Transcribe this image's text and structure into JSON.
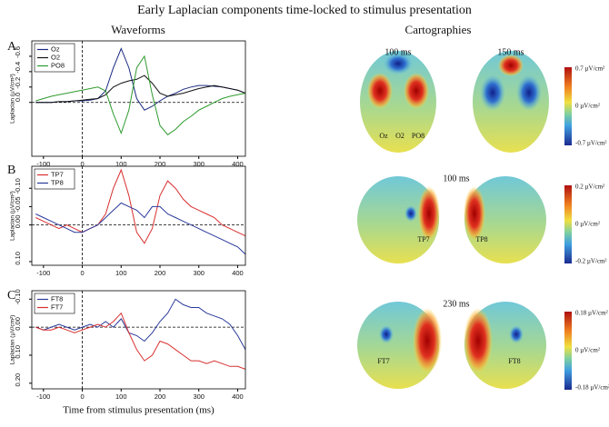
{
  "title": "Early Laplacian components time-locked to stimulus presentation",
  "chart_data": [
    {
      "type": "line",
      "title": "Waveforms",
      "panel": "A",
      "y_label": "Laplacian (µV/cm²)",
      "y_inverted": true,
      "legend": "upper left",
      "x": [
        -120,
        -100,
        -80,
        -60,
        -40,
        -20,
        0,
        20,
        40,
        60,
        80,
        100,
        120,
        140,
        160,
        180,
        200,
        220,
        240,
        260,
        280,
        300,
        320,
        340,
        360,
        380,
        400,
        420
      ],
      "xlim": [
        -130,
        420
      ],
      "xticks": [
        -100,
        0,
        100,
        200,
        300,
        400
      ],
      "ylim": [
        -0.8,
        0.7
      ],
      "yticks": [
        -0.6,
        -0.4,
        -0.2,
        {
          "value": 0,
          "label": "0.0"
        }
      ],
      "series": [
        {
          "name": "Oz",
          "color": "#1a2a80",
          "values": [
            0,
            0,
            0,
            -0.01,
            -0.01,
            -0.02,
            -0.02,
            -0.03,
            -0.05,
            -0.15,
            -0.45,
            -0.7,
            -0.45,
            -0.05,
            0.1,
            0.05,
            -0.02,
            -0.08,
            -0.12,
            -0.17,
            -0.2,
            -0.22,
            -0.22,
            -0.21,
            -0.2,
            -0.18,
            -0.16,
            -0.12
          ]
        },
        {
          "name": "O2",
          "color": "#111111",
          "values": [
            0,
            0,
            0,
            -0.01,
            -0.01,
            -0.02,
            -0.03,
            -0.04,
            -0.05,
            -0.1,
            -0.2,
            -0.25,
            -0.28,
            -0.3,
            -0.35,
            -0.25,
            -0.12,
            -0.08,
            -0.1,
            -0.12,
            -0.15,
            -0.18,
            -0.2,
            -0.22,
            -0.2,
            -0.18,
            -0.16,
            -0.12
          ]
        },
        {
          "name": "PO8",
          "color": "#2e9a2e",
          "values": [
            -0.02,
            -0.05,
            -0.08,
            -0.1,
            -0.12,
            -0.14,
            -0.16,
            -0.18,
            -0.2,
            -0.15,
            0.15,
            0.4,
            0.1,
            -0.45,
            -0.6,
            -0.1,
            0.3,
            0.42,
            0.35,
            0.25,
            0.18,
            0.1,
            0.05,
            0,
            -0.05,
            -0.08,
            -0.1,
            -0.12
          ]
        }
      ]
    },
    {
      "type": "line",
      "panel": "B",
      "y_label": "Laplacian (µV/cm²)",
      "y_inverted": true,
      "legend": "upper left",
      "x": [
        -120,
        -100,
        -80,
        -60,
        -40,
        -20,
        0,
        20,
        40,
        60,
        80,
        100,
        120,
        140,
        160,
        180,
        200,
        220,
        240,
        260,
        280,
        300,
        320,
        340,
        360,
        380,
        400,
        420
      ],
      "xlim": [
        -130,
        420
      ],
      "xticks": [
        -100,
        0,
        100,
        200,
        300,
        400
      ],
      "ylim": [
        -0.16,
        0.11
      ],
      "yticks": [
        {
          "value": -0.1,
          "label": "-0.10"
        },
        {
          "value": -0.05,
          "label": "-0.05"
        },
        {
          "value": 0,
          "label": "0.00"
        },
        {
          "value": 0.1,
          "label": "0.10"
        }
      ],
      "series": [
        {
          "name": "TP7",
          "color": "#d83030",
          "values": [
            -0.02,
            -0.01,
            0,
            0.01,
            0,
            0.01,
            0.02,
            0.01,
            0,
            -0.03,
            -0.1,
            -0.15,
            -0.08,
            0.02,
            0.05,
            0.01,
            -0.08,
            -0.12,
            -0.1,
            -0.07,
            -0.05,
            -0.04,
            -0.03,
            -0.02,
            0,
            0.01,
            0.02,
            0.03
          ]
        },
        {
          "name": "TP8",
          "color": "#2a3a9a",
          "values": [
            -0.03,
            -0.02,
            -0.01,
            0,
            0.01,
            0.02,
            0.02,
            0.01,
            0,
            -0.02,
            -0.04,
            -0.06,
            -0.05,
            -0.04,
            -0.02,
            -0.05,
            -0.05,
            -0.03,
            -0.02,
            -0.01,
            0,
            0.01,
            0.02,
            0.03,
            0.04,
            0.05,
            0.06,
            0.08
          ]
        }
      ]
    },
    {
      "type": "line",
      "panel": "C",
      "y_label": "Laplacian (µV/cm²)",
      "x_label": "Time from stimulus presentation (ms)",
      "y_inverted": true,
      "legend": "upper left",
      "x": [
        -120,
        -100,
        -80,
        -60,
        -40,
        -20,
        0,
        20,
        40,
        60,
        80,
        100,
        120,
        140,
        160,
        180,
        200,
        220,
        240,
        260,
        280,
        300,
        320,
        340,
        360,
        380,
        400,
        420
      ],
      "xlim": [
        -130,
        420
      ],
      "xticks": [
        -100,
        0,
        100,
        200,
        300,
        400
      ],
      "ylim": [
        -0.13,
        0.22
      ],
      "yticks": [
        {
          "value": -0.1,
          "label": "-0.10"
        },
        {
          "value": 0,
          "label": "0.00"
        },
        {
          "value": 0.1,
          "label": "0.10"
        },
        {
          "value": 0.2,
          "label": "0.20"
        }
      ],
      "series": [
        {
          "name": "FT8",
          "color": "#2a3a9a",
          "values": [
            0,
            0.01,
            0,
            -0.01,
            0,
            0.01,
            0,
            -0.01,
            0,
            -0.02,
            0,
            -0.03,
            0.02,
            0.03,
            0.05,
            0.02,
            -0.02,
            -0.05,
            -0.1,
            -0.08,
            -0.07,
            -0.07,
            -0.05,
            -0.04,
            -0.03,
            -0.01,
            0.03,
            0.08
          ]
        },
        {
          "name": "FT7",
          "color": "#d83030",
          "values": [
            0,
            0.01,
            0.01,
            0,
            0.01,
            0.02,
            0.01,
            0,
            -0.01,
            0,
            -0.02,
            -0.05,
            0.02,
            0.08,
            0.12,
            0.1,
            0.05,
            0.06,
            0.08,
            0.1,
            0.12,
            0.12,
            0.13,
            0.12,
            0.13,
            0.14,
            0.14,
            0.15
          ]
        }
      ]
    }
  ],
  "cartographies": {
    "title": "Cartographies",
    "rows": [
      {
        "times": [
          "100 ms",
          "150 ms"
        ],
        "scale": [
          "0.7 µV/cm²",
          "0 µV/cm²",
          "-0.7 µV/cm²"
        ],
        "electrodes": [
          "Oz",
          "O2",
          "PO8"
        ]
      },
      {
        "times": [
          "100 ms"
        ],
        "scale": [
          "0.2 µV/cm²",
          "0 µV/cm²",
          "-0.2 µV/cm²"
        ],
        "electrodes": [
          "TP7",
          "TP8"
        ]
      },
      {
        "times": [
          "230 ms"
        ],
        "scale": [
          "0.18 µV/cm²",
          "0 µV/cm²",
          "-0.18 µV/cm²"
        ],
        "electrodes": [
          "FT7",
          "FT8"
        ]
      }
    ]
  }
}
